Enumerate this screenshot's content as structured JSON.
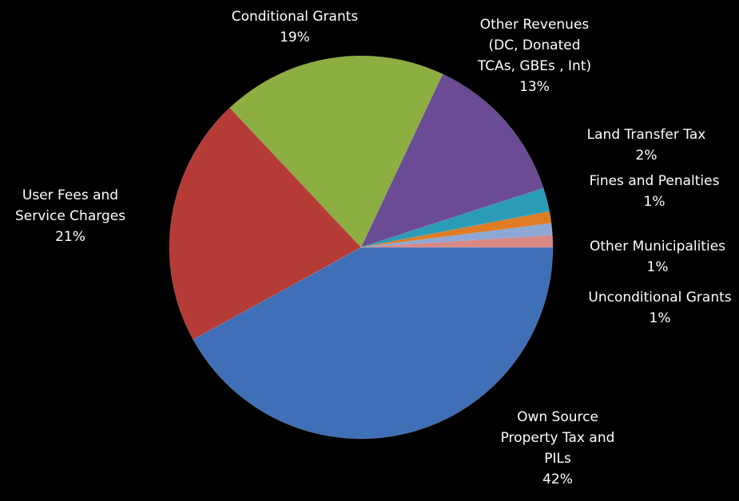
{
  "chart_data": {
    "type": "pie",
    "title": "",
    "slices": [
      {
        "label": [
          "Own Source",
          "Property Tax and",
          "PILs"
        ],
        "pct_label": "42%",
        "value": 42,
        "color": "#3f6fb6"
      },
      {
        "label": [
          "User Fees and",
          "Service Charges"
        ],
        "pct_label": "21%",
        "value": 21,
        "color": "#b53b37"
      },
      {
        "label": [
          "Conditional Grants"
        ],
        "pct_label": "19%",
        "value": 19,
        "color": "#8dae40"
      },
      {
        "label": [
          "Other Revenues",
          "(DC, Donated",
          "TCAs, GBEs , Int)"
        ],
        "pct_label": "13%",
        "value": 13,
        "color": "#6a4b94"
      },
      {
        "label": [
          "Land Transfer Tax"
        ],
        "pct_label": "2%",
        "value": 2,
        "color": "#2b9cb6"
      },
      {
        "label": [
          "Fines and Penalties"
        ],
        "pct_label": "1%",
        "value": 1,
        "color": "#e07c24"
      },
      {
        "label": [
          "Other Municipalities"
        ],
        "pct_label": "1%",
        "value": 1,
        "color": "#8ea8d6"
      },
      {
        "label": [
          "Unconditional Grants"
        ],
        "pct_label": "1%",
        "value": 1,
        "color": "#d98885"
      }
    ]
  }
}
